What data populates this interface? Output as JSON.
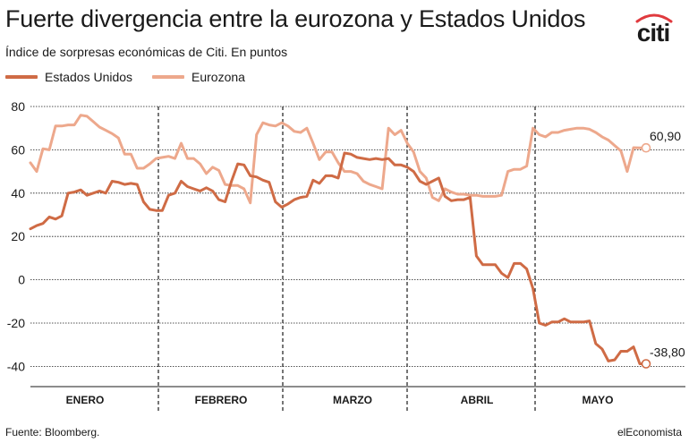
{
  "header": {
    "title": "Fuerte divergencia entre la eurozona y Estados Unidos",
    "subtitle": "Índice de sorpresas económicas de Citi. En puntos",
    "brand": "citi"
  },
  "footer": {
    "source": "Fuente: Bloomberg.",
    "credit": "elEconomista"
  },
  "colors": {
    "us": "#cf6b45",
    "eu": "#eda88c",
    "grid": "#1a1a1a",
    "citi_arc": "#e03a3e",
    "citi_text": "#1a1a1a"
  },
  "chart_data": {
    "type": "line",
    "title": "Fuerte divergencia entre la eurozona y Estados Unidos",
    "subtitle": "Índice de sorpresas económicas de Citi. En puntos",
    "xlabel": "",
    "ylabel": "",
    "ylim": [
      -50,
      80
    ],
    "yticks": [
      -40,
      -20,
      0,
      20,
      40,
      60,
      80
    ],
    "grid": true,
    "legend_position": "top-left",
    "months": [
      "ENERO",
      "FEBRERO",
      "MARZO",
      "ABRIL",
      "MAYO"
    ],
    "series": [
      {
        "name": "Estados Unidos",
        "end_label": "-38,80",
        "values": [
          23.5,
          25,
          26,
          29,
          28,
          29.5,
          40,
          40.5,
          41.5,
          39,
          40,
          41,
          40,
          45.5,
          45,
          44,
          44.5,
          44,
          36,
          32.5,
          32,
          32,
          39,
          40,
          45.5,
          43,
          42,
          41,
          42.5,
          41,
          37,
          36,
          45.5,
          53.5,
          53,
          48,
          47.5,
          46,
          45,
          36,
          33.5,
          35,
          37,
          38,
          38.5,
          46,
          44.5,
          48,
          48,
          47,
          58.5,
          58,
          56.5,
          56,
          55.5,
          56,
          55.5,
          56,
          53,
          53,
          52,
          50,
          45.5,
          44,
          45.5,
          47,
          38.5,
          36.5,
          37,
          37,
          38,
          11,
          7,
          7,
          7,
          3,
          1,
          7.5,
          7.5,
          5,
          -4,
          -20,
          -21,
          -19.5,
          -19.5,
          -18,
          -19.5,
          -19.5,
          -19.5,
          -19,
          -29.5,
          -32,
          -37.5,
          -37,
          -33,
          -33,
          -31,
          -38.8,
          -38.8
        ],
        "end_value": -38.8
      },
      {
        "name": "Eurozona",
        "end_label": "60,90",
        "values": [
          54,
          50,
          60.5,
          60,
          71,
          71,
          71.5,
          71.5,
          76,
          75.5,
          73,
          70.5,
          69,
          67.5,
          65.5,
          58,
          58,
          51.5,
          51.5,
          53.5,
          56,
          56.5,
          57,
          56,
          63,
          56,
          56,
          53.5,
          49,
          52,
          50.5,
          44,
          43.5,
          43.5,
          42,
          35.5,
          67,
          72.5,
          71.5,
          71,
          72.5,
          71,
          68.5,
          68,
          70,
          63,
          55.5,
          59,
          59,
          54,
          50,
          50,
          49,
          45.5,
          44,
          43,
          42,
          70,
          67,
          69,
          63,
          59,
          50,
          47,
          38,
          36.5,
          42,
          40.5,
          39.5,
          39.5,
          39,
          39,
          38.5,
          38.5,
          38.5,
          39,
          50,
          51,
          51,
          52.5,
          70,
          67,
          66,
          68,
          68,
          69,
          69.5,
          70,
          70,
          69.5,
          68,
          66,
          64.5,
          62,
          59.5,
          50,
          61,
          60.9,
          60.9
        ],
        "end_value": 60.9
      }
    ]
  }
}
